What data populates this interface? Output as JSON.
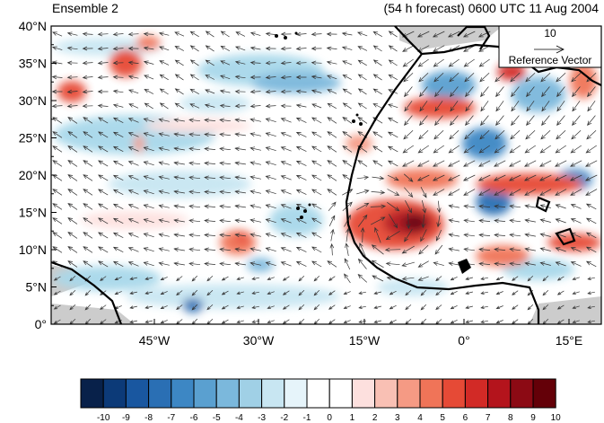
{
  "title_left": "Ensemble 2",
  "title_right": "(54 h forecast) 0600 UTC 11 Aug 2004",
  "map": {
    "lat_ticks": [
      "40°N",
      "35°N",
      "30°N",
      "25°N",
      "20°N",
      "15°N",
      "10°N",
      "5°N",
      "0°"
    ],
    "lon_ticks": [
      "45°W",
      "30°W",
      "15°W",
      "0°",
      "15°E"
    ]
  },
  "reference_vector": {
    "value": "10",
    "label": "Reference Vector"
  },
  "colorbar": {
    "labels": [
      "-10",
      "-9",
      "-8",
      "-7",
      "-6",
      "-5",
      "-4",
      "-3",
      "-2",
      "-1",
      "0",
      "1",
      "2",
      "3",
      "4",
      "5",
      "6",
      "7",
      "8",
      "9",
      "10"
    ],
    "colors": [
      "#08214a",
      "#0c3a78",
      "#1957a0",
      "#2a6fb4",
      "#3d87c4",
      "#5aa0d0",
      "#7bb8dc",
      "#a0d0e6",
      "#c8e6f2",
      "#e6f4fa",
      "#ffffff",
      "#ffffff",
      "#fde0de",
      "#f9c0b4",
      "#f59a84",
      "#f07458",
      "#e64a36",
      "#d22a26",
      "#b4141c",
      "#8c0a14",
      "#640008"
    ]
  }
}
